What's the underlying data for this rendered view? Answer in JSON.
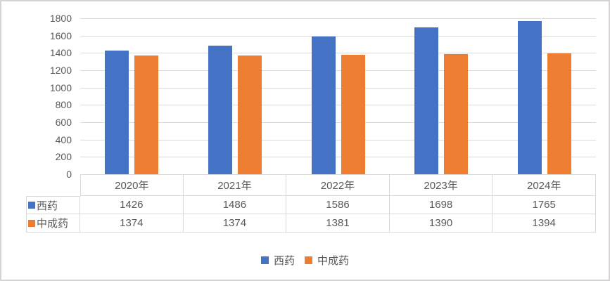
{
  "chart_data": {
    "type": "bar",
    "title": "",
    "xlabel": "",
    "ylabel": "",
    "categories": [
      "2020年",
      "2021年",
      "2022年",
      "2023年",
      "2024年"
    ],
    "series": [
      {
        "name": "西药",
        "color": "#4472C4",
        "values": [
          1426,
          1486,
          1586,
          1698,
          1765
        ]
      },
      {
        "name": "中成药",
        "color": "#ED7D31",
        "values": [
          1374,
          1374,
          1381,
          1390,
          1394
        ]
      }
    ],
    "ylim": [
      0,
      1800
    ],
    "ytick_step": 200,
    "ytick_labels": [
      "0",
      "200",
      "400",
      "600",
      "800",
      "1000",
      "1200",
      "1400",
      "1600",
      "1800"
    ],
    "grid": true,
    "legend_position": "bottom",
    "show_data_table": true,
    "colors": {
      "grid_line": "#d9d9d9",
      "axis_text": "#595959",
      "table_border": "#d9d9d9",
      "table_text": "#595959",
      "legend_text": "#595959",
      "frame_border": "#d5d3d3",
      "background": "#ffffff"
    }
  }
}
